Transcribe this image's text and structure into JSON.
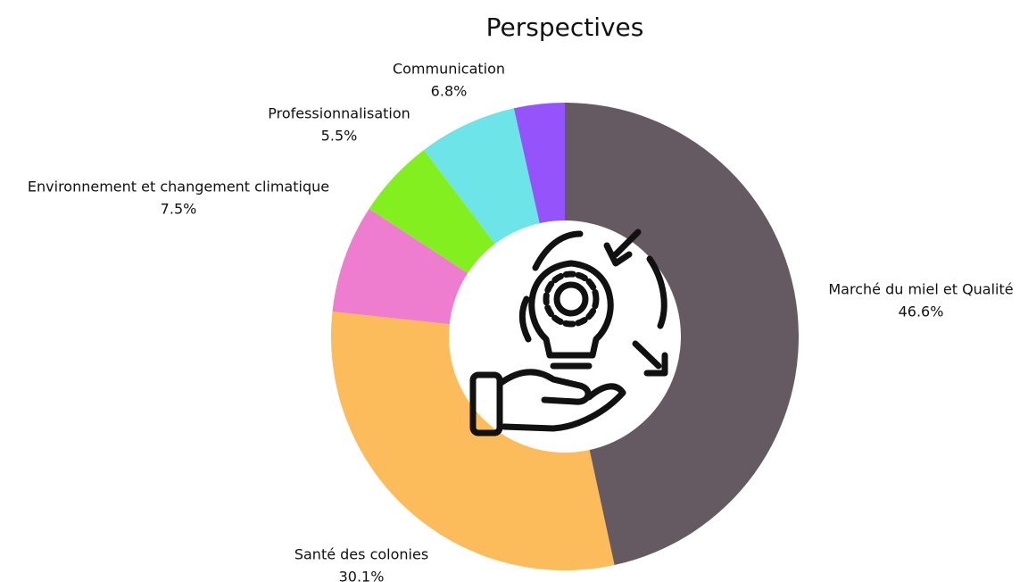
{
  "chart_data": {
    "type": "donut",
    "title": "Perspectives",
    "categories": [
      "Marché du miel et Qualité",
      "Santé des colonies",
      "Environnement et changement climatique",
      "Professionnalisation",
      "Communication",
      null
    ],
    "values": [
      46.6,
      30.1,
      7.5,
      5.5,
      6.8,
      3.5
    ],
    "value_labels": [
      "46.6%",
      "30.1%",
      "7.5%",
      "5.5%",
      "6.8%",
      null
    ],
    "colors": [
      "#665a62",
      "#fdbc5c",
      "#ef7dcf",
      "#84ef1e",
      "#6ce4e8",
      "#9554fb"
    ]
  }
}
